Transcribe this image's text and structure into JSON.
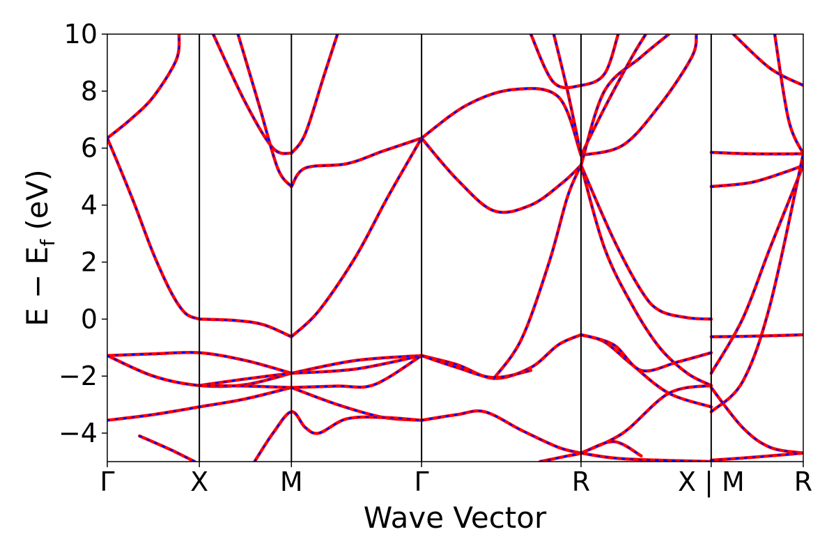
{
  "chart_data": {
    "type": "line",
    "title": "",
    "xlabel": "Wave Vector",
    "ylabel": "E − E",
    "ylabel_sub": "f",
    "ylabel_unit": " (eV)",
    "ylim": [
      -5,
      10
    ],
    "yticks": [
      {
        "value": 10,
        "label": "10"
      },
      {
        "value": 8,
        "label": "8"
      },
      {
        "value": 6,
        "label": "6"
      },
      {
        "value": 4,
        "label": "4"
      },
      {
        "value": 2,
        "label": "2"
      },
      {
        "value": 0,
        "label": "0"
      },
      {
        "value": -2,
        "label": "−2"
      },
      {
        "value": -4,
        "label": "−4"
      }
    ],
    "xticks": [
      {
        "value": 0,
        "label": "Γ"
      },
      {
        "value": 1,
        "label": "X"
      },
      {
        "value": 2,
        "label": "M"
      },
      {
        "value": 3.414,
        "label": "Γ"
      },
      {
        "value": 5.146,
        "label": "R"
      },
      {
        "value": 6.56,
        "label": "X | M"
      },
      {
        "value": 7.56,
        "label": "R"
      }
    ],
    "colors": {
      "series_a": "#ff0000",
      "series_b": "#0000ff"
    },
    "series": [
      {
        "values": [
          [
            0,
            6.35
          ],
          [
            0.25,
            7.0
          ],
          [
            0.5,
            7.8
          ],
          [
            0.75,
            9.1
          ],
          [
            0.78,
            10.0
          ]
        ]
      },
      {
        "values": [
          [
            0,
            6.35
          ],
          [
            0.15,
            5.2
          ],
          [
            0.3,
            4.0
          ],
          [
            0.5,
            2.3
          ],
          [
            0.7,
            0.9
          ],
          [
            0.85,
            0.2
          ],
          [
            1,
            0
          ]
        ]
      },
      {
        "values": [
          [
            1,
            0
          ],
          [
            1.4,
            -0.05
          ],
          [
            1.7,
            -0.2
          ],
          [
            2,
            -0.62
          ]
        ]
      },
      {
        "values": [
          [
            2,
            -0.62
          ],
          [
            2.3,
            0.3
          ],
          [
            2.7,
            2.2
          ],
          [
            3.05,
            4.3
          ],
          [
            3.414,
            6.35
          ]
        ]
      },
      {
        "values": [
          [
            1.15,
            10.0
          ],
          [
            1.5,
            7.6
          ],
          [
            1.8,
            6.0
          ],
          [
            2,
            5.82
          ]
        ]
      },
      {
        "values": [
          [
            1.42,
            10.0
          ],
          [
            1.65,
            7.5
          ],
          [
            1.85,
            5.3
          ],
          [
            2,
            4.65
          ]
        ]
      },
      {
        "values": [
          [
            2,
            5.82
          ],
          [
            2.15,
            6.5
          ],
          [
            2.35,
            8.5
          ],
          [
            2.5,
            10.0
          ]
        ]
      },
      {
        "values": [
          [
            2,
            4.65
          ],
          [
            2.15,
            5.3
          ],
          [
            2.6,
            5.45
          ],
          [
            3.0,
            5.9
          ],
          [
            3.414,
            6.35
          ]
        ]
      },
      {
        "values": [
          [
            3.414,
            6.35
          ],
          [
            3.9,
            7.5
          ],
          [
            4.4,
            8.05
          ],
          [
            4.9,
            7.8
          ],
          [
            5.146,
            5.75
          ]
        ]
      },
      {
        "values": [
          [
            3.414,
            6.35
          ],
          [
            3.8,
            4.9
          ],
          [
            4.2,
            3.8
          ],
          [
            4.6,
            4.0
          ],
          [
            4.95,
            4.8
          ],
          [
            5.146,
            5.4
          ]
        ]
      },
      {
        "values": [
          [
            0,
            -1.28
          ],
          [
            0.5,
            -1.22
          ],
          [
            1,
            -1.18
          ],
          [
            1.5,
            -1.45
          ],
          [
            2,
            -1.9
          ]
        ]
      },
      {
        "values": [
          [
            0,
            -1.28
          ],
          [
            0.5,
            -2.0
          ],
          [
            1,
            -2.33
          ],
          [
            1.5,
            -2.3
          ],
          [
            2,
            -1.9
          ]
        ]
      },
      {
        "values": [
          [
            0,
            -3.55
          ],
          [
            0.5,
            -3.35
          ],
          [
            1,
            -3.08
          ],
          [
            1.5,
            -2.8
          ],
          [
            2,
            -2.4
          ]
        ]
      },
      {
        "values": [
          [
            1,
            -2.33
          ],
          [
            1.5,
            -2.1
          ],
          [
            2,
            -1.9
          ]
        ]
      },
      {
        "values": [
          [
            1,
            -2.33
          ],
          [
            1.5,
            -2.35
          ],
          [
            2,
            -2.4
          ]
        ]
      },
      {
        "values": [
          [
            0.35,
            -4.1
          ],
          [
            0.7,
            -4.6
          ],
          [
            0.95,
            -5.0
          ]
        ]
      },
      {
        "values": [
          [
            2,
            -1.9
          ],
          [
            2.7,
            -1.45
          ],
          [
            3.414,
            -1.28
          ]
        ]
      },
      {
        "values": [
          [
            2,
            -1.9
          ],
          [
            2.7,
            -1.75
          ],
          [
            3.414,
            -1.28
          ]
        ]
      },
      {
        "values": [
          [
            2,
            -2.4
          ],
          [
            2.5,
            -2.35
          ],
          [
            2.9,
            -2.3
          ],
          [
            3.414,
            -1.28
          ]
        ]
      },
      {
        "values": [
          [
            2,
            -2.4
          ],
          [
            2.5,
            -3.0
          ],
          [
            3,
            -3.45
          ],
          [
            3.414,
            -3.55
          ]
        ]
      },
      {
        "values": [
          [
            1.6,
            -5.0
          ],
          [
            1.8,
            -4.0
          ],
          [
            2,
            -3.25
          ],
          [
            2.15,
            -3.8
          ],
          [
            2.3,
            -4.0
          ],
          [
            2.6,
            -3.5
          ],
          [
            3,
            -3.45
          ],
          [
            3.414,
            -3.55
          ]
        ]
      },
      {
        "values": [
          [
            3.414,
            -1.28
          ],
          [
            3.8,
            -1.6
          ],
          [
            4.2,
            -2.08
          ],
          [
            4.6,
            -1.7
          ],
          [
            4.9,
            -0.9
          ],
          [
            5.146,
            -0.55
          ]
        ]
      },
      {
        "values": [
          [
            3.414,
            -1.28
          ],
          [
            3.8,
            -1.7
          ],
          [
            4.2,
            -2.05
          ],
          [
            4.6,
            -1.8
          ]
        ]
      },
      {
        "values": [
          [
            3.414,
            -3.55
          ],
          [
            3.8,
            -3.35
          ],
          [
            4.1,
            -3.25
          ],
          [
            4.5,
            -3.9
          ],
          [
            4.9,
            -4.5
          ],
          [
            5.146,
            -4.7
          ]
        ]
      },
      {
        "values": [
          [
            4.2,
            -2.08
          ],
          [
            4.5,
            -0.7
          ],
          [
            4.8,
            2.0
          ],
          [
            5.0,
            4.3
          ],
          [
            5.146,
            5.4
          ]
        ]
      },
      {
        "values": [
          [
            4.6,
            10.0
          ],
          [
            4.85,
            8.3
          ],
          [
            5.146,
            8.2
          ],
          [
            5.4,
            8.6
          ],
          [
            5.55,
            10.0
          ]
        ]
      },
      {
        "values": [
          [
            4.85,
            10.0
          ],
          [
            5.0,
            8.0
          ],
          [
            5.146,
            5.75
          ]
        ]
      },
      {
        "values": [
          [
            5.146,
            5.75
          ],
          [
            5.6,
            6.1
          ],
          [
            6.0,
            7.5
          ],
          [
            6.35,
            9.2
          ],
          [
            6.4,
            10.0
          ]
        ]
      },
      {
        "values": [
          [
            5.146,
            5.75
          ],
          [
            5.4,
            7.4
          ],
          [
            5.7,
            9.2
          ],
          [
            5.85,
            10.0
          ]
        ]
      },
      {
        "values": [
          [
            5.146,
            5.4
          ],
          [
            5.4,
            8.0
          ],
          [
            5.8,
            9.2
          ],
          [
            6.1,
            10.0
          ]
        ]
      },
      {
        "values": [
          [
            5.146,
            5.4
          ],
          [
            5.5,
            2.8
          ],
          [
            5.8,
            1.0
          ],
          [
            6.0,
            0.3
          ],
          [
            6.3,
            0.05
          ],
          [
            6.56,
            0
          ]
        ]
      },
      {
        "values": [
          [
            5.146,
            5.4
          ],
          [
            5.4,
            2.5
          ],
          [
            5.7,
            0.5
          ],
          [
            6.0,
            -1.0
          ],
          [
            6.3,
            -1.9
          ],
          [
            6.56,
            -2.33
          ]
        ]
      },
      {
        "values": [
          [
            5.146,
            -0.55
          ],
          [
            5.4,
            -0.8
          ],
          [
            5.7,
            -1.6
          ],
          [
            6.1,
            -2.6
          ],
          [
            6.56,
            -3.08
          ]
        ]
      },
      {
        "values": [
          [
            5.146,
            -0.55
          ],
          [
            5.5,
            -0.9
          ],
          [
            5.8,
            -1.8
          ],
          [
            6.2,
            -1.5
          ],
          [
            6.56,
            -1.18
          ]
        ]
      },
      {
        "values": [
          [
            5.146,
            -4.7
          ],
          [
            5.6,
            -4.0
          ],
          [
            6.1,
            -2.6
          ],
          [
            6.56,
            -2.33
          ]
        ]
      },
      {
        "values": [
          [
            4.7,
            -5.0
          ],
          [
            5.0,
            -4.8
          ],
          [
            5.146,
            -4.7
          ],
          [
            5.5,
            -4.3
          ],
          [
            5.8,
            -4.8
          ]
        ]
      },
      {
        "values": [
          [
            5.146,
            -4.7
          ],
          [
            5.6,
            -4.9
          ],
          [
            6.56,
            -5.0
          ]
        ]
      },
      {
        "values": [
          [
            6.56,
            5.85
          ],
          [
            7.0,
            5.8
          ],
          [
            7.56,
            5.8
          ]
        ]
      },
      {
        "values": [
          [
            6.56,
            4.65
          ],
          [
            7.0,
            4.8
          ],
          [
            7.4,
            5.2
          ],
          [
            7.56,
            5.4
          ]
        ]
      },
      {
        "values": [
          [
            6.56,
            -1.9
          ],
          [
            6.9,
            0.0
          ],
          [
            7.2,
            2.5
          ],
          [
            7.56,
            5.4
          ]
        ]
      },
      {
        "values": [
          [
            6.56,
            -3.25
          ],
          [
            6.9,
            -2.2
          ],
          [
            7.2,
            0.5
          ],
          [
            7.56,
            5.8
          ]
        ]
      },
      {
        "values": [
          [
            6.56,
            -0.62
          ],
          [
            7.0,
            -0.6
          ],
          [
            7.56,
            -0.55
          ]
        ]
      },
      {
        "values": [
          [
            6.56,
            -2.4
          ],
          [
            6.9,
            -3.8
          ],
          [
            7.2,
            -4.5
          ],
          [
            7.56,
            -4.7
          ]
        ]
      },
      {
        "values": [
          [
            6.56,
            -4.95
          ],
          [
            7.0,
            -4.85
          ],
          [
            7.56,
            -4.7
          ]
        ]
      },
      {
        "values": [
          [
            6.8,
            10.0
          ],
          [
            7.2,
            8.8
          ],
          [
            7.56,
            8.2
          ]
        ]
      },
      {
        "values": [
          [
            7.25,
            10.0
          ],
          [
            7.4,
            7.0
          ],
          [
            7.56,
            5.8
          ]
        ]
      }
    ]
  }
}
